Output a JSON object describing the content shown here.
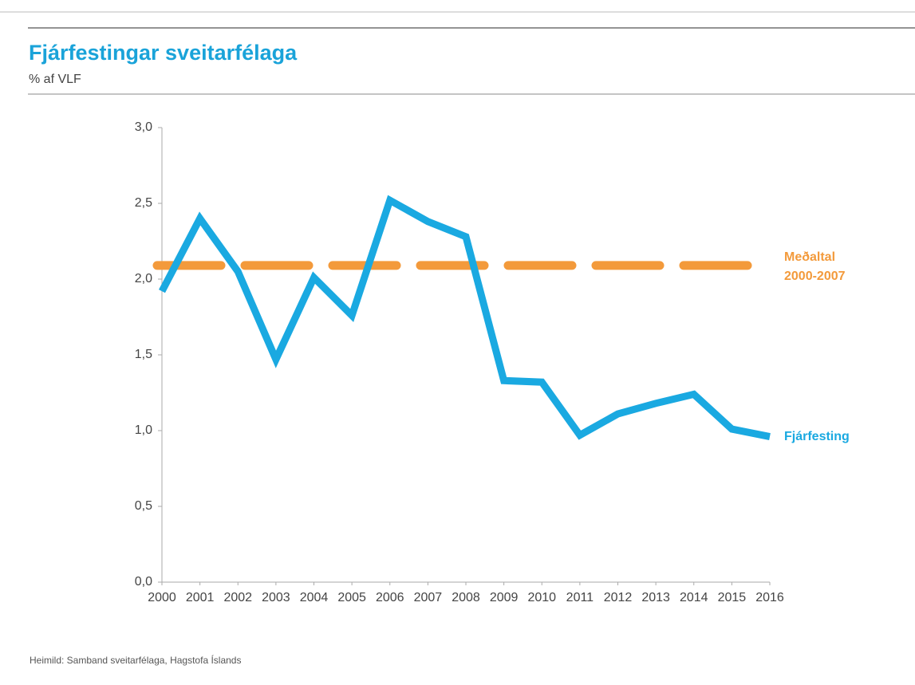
{
  "chart_data": {
    "type": "line",
    "title": "Fjárfestingar sveitarfélaga",
    "subtitle": "% af VLF",
    "source": "Heimild: Samband sveitarfélaga, Hagstofa Íslands",
    "x": [
      2000,
      2001,
      2002,
      2003,
      2004,
      2005,
      2006,
      2007,
      2008,
      2009,
      2010,
      2011,
      2012,
      2013,
      2014,
      2015,
      2016
    ],
    "xlim": [
      2000,
      2016
    ],
    "xticks": [
      2000,
      2001,
      2002,
      2003,
      2004,
      2005,
      2006,
      2007,
      2008,
      2009,
      2010,
      2011,
      2012,
      2013,
      2014,
      2015,
      2016
    ],
    "series": [
      {
        "name": "Fjárfesting",
        "color": "#1aa9e1",
        "values": [
          1.92,
          2.4,
          2.05,
          1.47,
          2.01,
          1.76,
          2.52,
          2.38,
          2.28,
          1.33,
          1.32,
          0.97,
          1.11,
          1.18,
          1.24,
          1.01,
          0.96
        ]
      }
    ],
    "reference_line": {
      "value": 2.09,
      "label_lines": [
        "Meðaltal",
        "2000-2007"
      ],
      "color": "#f39a3b"
    },
    "ylim": [
      0,
      3
    ],
    "yticks": [
      {
        "value": 0,
        "label": "0,0"
      },
      {
        "value": 0.5,
        "label": "0,5"
      },
      {
        "value": 1,
        "label": "1,0"
      },
      {
        "value": 1.5,
        "label": "1,5"
      },
      {
        "value": 2,
        "label": "2,0"
      },
      {
        "value": 2.5,
        "label": "2,5"
      },
      {
        "value": 3,
        "label": "3,0"
      }
    ]
  }
}
